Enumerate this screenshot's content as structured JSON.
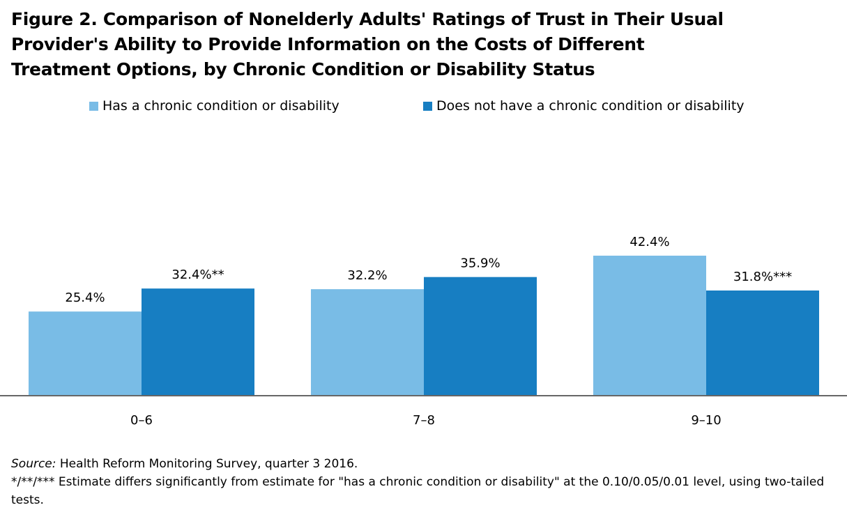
{
  "title_lines": [
    "Figure 2. Comparison of Nonelderly Adults' Ratings of Trust in Their Usual",
    "Provider's Ability to Provide Information on the Costs of Different",
    "Treatment Options, by Chronic Condition or Disability Status"
  ],
  "colors": {
    "series_light": "#79bce6",
    "series_dark": "#177ec2",
    "axis": "#666666"
  },
  "chart_data": {
    "type": "bar",
    "title": "Figure 2. Comparison of Nonelderly Adults' Ratings of Trust in Their Usual Provider's Ability to Provide Information on the Costs of Different Treatment Options, by Chronic Condition or Disability Status",
    "xlabel": "",
    "ylabel": "",
    "ylim": [
      0,
      45
    ],
    "grid": false,
    "legend_position": "top-center",
    "categories": [
      "0–6",
      "7–8",
      "9–10"
    ],
    "series": [
      {
        "name": "Has a chronic condition or disability",
        "values": [
          25.4,
          32.2,
          42.4
        ],
        "labels": [
          "25.4%",
          "32.2%",
          "42.4%"
        ]
      },
      {
        "name": "Does not have a chronic condition or disability",
        "values": [
          32.4,
          35.9,
          31.8
        ],
        "labels": [
          "32.4%**",
          "35.9%",
          "31.8%***"
        ]
      }
    ]
  },
  "footer": {
    "source_label": "Source:",
    "source_text": " Health Reform Monitoring Survey, quarter 3 2016.",
    "note": "*/**/*** Estimate differs significantly from estimate for \"has a chronic condition or disability\" at the 0.10/0.05/0.01 level, using two-tailed tests."
  }
}
